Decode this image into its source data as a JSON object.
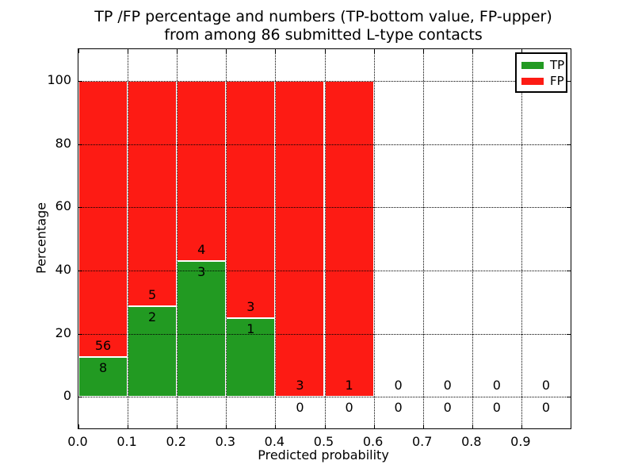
{
  "chart_data": {
    "type": "bar",
    "stacked": true,
    "title_line1": "TP /FP percentage and numbers (TP-bottom value, FP-upper)",
    "title_line2": "from among 86 submitted L-type contacts",
    "xlabel": "Predicted probability",
    "ylabel": "Percentage",
    "xlim": [
      0.0,
      1.0
    ],
    "ylim": [
      -10,
      110
    ],
    "x_ticks": [
      0.0,
      0.1,
      0.2,
      0.3,
      0.4,
      0.5,
      0.6,
      0.7,
      0.8,
      0.9
    ],
    "x_tick_labels": [
      "0.0",
      "0.1",
      "0.2",
      "0.3",
      "0.4",
      "0.5",
      "0.6",
      "0.7",
      "0.8",
      "0.9"
    ],
    "y_ticks": [
      0,
      20,
      40,
      60,
      80,
      100
    ],
    "y_tick_labels": [
      "0",
      "20",
      "40",
      "60",
      "80",
      "100"
    ],
    "grid": "dotted",
    "bin_width": 0.1,
    "total_contacts": 86,
    "bins": [
      {
        "x_start": 0.0,
        "tp_count": 8,
        "fp_count": 56,
        "tp_pct": 12.5,
        "fp_pct": 87.5
      },
      {
        "x_start": 0.1,
        "tp_count": 2,
        "fp_count": 5,
        "tp_pct": 28.57,
        "fp_pct": 71.43
      },
      {
        "x_start": 0.2,
        "tp_count": 3,
        "fp_count": 4,
        "tp_pct": 42.86,
        "fp_pct": 57.14
      },
      {
        "x_start": 0.3,
        "tp_count": 1,
        "fp_count": 3,
        "tp_pct": 25.0,
        "fp_pct": 75.0
      },
      {
        "x_start": 0.4,
        "tp_count": 0,
        "fp_count": 3,
        "tp_pct": 0,
        "fp_pct": 100
      },
      {
        "x_start": 0.5,
        "tp_count": 0,
        "fp_count": 1,
        "tp_pct": 0,
        "fp_pct": 100
      },
      {
        "x_start": 0.6,
        "tp_count": 0,
        "fp_count": 0,
        "tp_pct": 0,
        "fp_pct": 0
      },
      {
        "x_start": 0.7,
        "tp_count": 0,
        "fp_count": 0,
        "tp_pct": 0,
        "fp_pct": 0
      },
      {
        "x_start": 0.8,
        "tp_count": 0,
        "fp_count": 0,
        "tp_pct": 0,
        "fp_pct": 0
      },
      {
        "x_start": 0.9,
        "tp_count": 0,
        "fp_count": 0,
        "tp_pct": 0,
        "fp_pct": 0
      }
    ],
    "legend": [
      {
        "label": "TP",
        "color": "#229a22"
      },
      {
        "label": "FP",
        "color": "#fd1b14"
      }
    ],
    "colors": {
      "tp": "#229a22",
      "fp": "#fd1b14",
      "grid": "#000000",
      "spine": "#000000",
      "background": "#ffffff",
      "bar_edge": "#ffffff"
    },
    "legend_position": "upper right"
  }
}
